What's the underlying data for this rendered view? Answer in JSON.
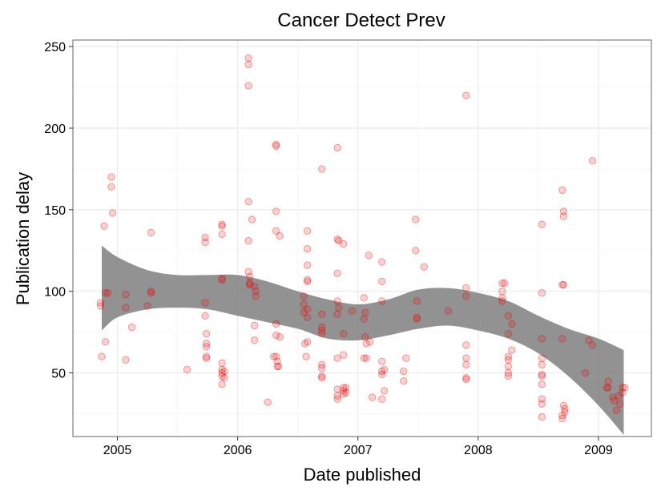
{
  "chart_data": {
    "type": "scatter",
    "title": "Cancer Detect Prev",
    "xlabel": "Date published",
    "ylabel": "Publication delay",
    "x_range": [
      2004.63,
      2009.44
    ],
    "ylim": [
      11,
      254
    ],
    "x_ticks": [
      2005,
      2006,
      2007,
      2008,
      2009
    ],
    "x_tick_labels": [
      "2005",
      "2006",
      "2007",
      "2008",
      "2009"
    ],
    "y_ticks": [
      50,
      100,
      150,
      200,
      250
    ],
    "y_tick_labels": [
      "50",
      "100",
      "150",
      "200",
      "250"
    ],
    "grid": true,
    "colors": {
      "points": "#ff0000",
      "point_stroke": "#d40000",
      "band": "#7f7f7f",
      "grid_major": "#ebebeb",
      "grid_minor": "#f5f5f5",
      "panel_border": "#7f7f7f"
    },
    "points": [
      [
        2004.86,
        91
      ],
      [
        2004.86,
        93
      ],
      [
        2004.87,
        60
      ],
      [
        2004.89,
        140
      ],
      [
        2004.9,
        69
      ],
      [
        2004.9,
        99
      ],
      [
        2004.92,
        99
      ],
      [
        2004.95,
        170
      ],
      [
        2004.95,
        164
      ],
      [
        2004.96,
        148
      ],
      [
        2005.07,
        98
      ],
      [
        2005.07,
        90
      ],
      [
        2005.07,
        58
      ],
      [
        2005.12,
        78
      ],
      [
        2005.25,
        91
      ],
      [
        2005.28,
        136
      ],
      [
        2005.28,
        100
      ],
      [
        2005.28,
        99
      ],
      [
        2005.58,
        52
      ],
      [
        2005.73,
        133
      ],
      [
        2005.73,
        130
      ],
      [
        2005.73,
        93
      ],
      [
        2005.73,
        85
      ],
      [
        2005.74,
        74
      ],
      [
        2005.74,
        68
      ],
      [
        2005.74,
        66
      ],
      [
        2005.74,
        60
      ],
      [
        2005.74,
        59
      ],
      [
        2005.87,
        141
      ],
      [
        2005.87,
        140
      ],
      [
        2005.87,
        135
      ],
      [
        2005.87,
        108
      ],
      [
        2005.87,
        107
      ],
      [
        2005.87,
        56
      ],
      [
        2005.87,
        52
      ],
      [
        2005.87,
        50
      ],
      [
        2005.87,
        48
      ],
      [
        2005.87,
        43
      ],
      [
        2005.89,
        51
      ],
      [
        2005.89,
        47
      ],
      [
        2006.09,
        243
      ],
      [
        2006.09,
        239
      ],
      [
        2006.09,
        226
      ],
      [
        2006.09,
        155
      ],
      [
        2006.09,
        131
      ],
      [
        2006.09,
        112
      ],
      [
        2006.1,
        109
      ],
      [
        2006.1,
        105
      ],
      [
        2006.1,
        104
      ],
      [
        2006.12,
        144
      ],
      [
        2006.14,
        103
      ],
      [
        2006.15,
        100
      ],
      [
        2006.15,
        97
      ],
      [
        2006.14,
        79
      ],
      [
        2006.14,
        70
      ],
      [
        2006.25,
        32
      ],
      [
        2006.32,
        190
      ],
      [
        2006.32,
        189
      ],
      [
        2006.32,
        149
      ],
      [
        2006.32,
        137
      ],
      [
        2006.32,
        80
      ],
      [
        2006.32,
        73
      ],
      [
        2006.32,
        60
      ],
      [
        2006.33,
        57
      ],
      [
        2006.33,
        54
      ],
      [
        2006.35,
        134
      ],
      [
        2006.35,
        72
      ],
      [
        2006.3,
        60
      ],
      [
        2006.34,
        54
      ],
      [
        2006.55,
        97
      ],
      [
        2006.55,
        92
      ],
      [
        2006.55,
        87
      ],
      [
        2006.56,
        68
      ],
      [
        2006.57,
        60
      ],
      [
        2006.58,
        137
      ],
      [
        2006.58,
        126
      ],
      [
        2006.58,
        116
      ],
      [
        2006.58,
        107
      ],
      [
        2006.58,
        106
      ],
      [
        2006.58,
        89
      ],
      [
        2006.58,
        84
      ],
      [
        2006.58,
        69
      ],
      [
        2006.7,
        175
      ],
      [
        2006.7,
        86
      ],
      [
        2006.7,
        78
      ],
      [
        2006.7,
        76
      ],
      [
        2006.7,
        74
      ],
      [
        2006.7,
        55
      ],
      [
        2006.7,
        53
      ],
      [
        2006.7,
        48
      ],
      [
        2006.7,
        47
      ],
      [
        2006.83,
        188
      ],
      [
        2006.83,
        132
      ],
      [
        2006.83,
        111
      ],
      [
        2006.83,
        94
      ],
      [
        2006.83,
        86
      ],
      [
        2006.83,
        59
      ],
      [
        2006.83,
        40
      ],
      [
        2006.83,
        36
      ],
      [
        2006.83,
        34
      ],
      [
        2006.84,
        131
      ],
      [
        2006.84,
        90
      ],
      [
        2006.88,
        129
      ],
      [
        2006.88,
        74
      ],
      [
        2006.88,
        61
      ],
      [
        2006.88,
        41
      ],
      [
        2006.88,
        39
      ],
      [
        2006.88,
        37
      ],
      [
        2006.9,
        41
      ],
      [
        2006.9,
        38
      ],
      [
        2006.95,
        88
      ],
      [
        2007.05,
        96
      ],
      [
        2007.05,
        83
      ],
      [
        2007.05,
        59
      ],
      [
        2007.06,
        87
      ],
      [
        2007.06,
        72
      ],
      [
        2007.07,
        68
      ],
      [
        2007.07,
        59
      ],
      [
        2007.09,
        122
      ],
      [
        2007.1,
        69
      ],
      [
        2007.12,
        35
      ],
      [
        2007.2,
        118
      ],
      [
        2007.2,
        106
      ],
      [
        2007.2,
        94
      ],
      [
        2007.2,
        57
      ],
      [
        2007.2,
        51
      ],
      [
        2007.2,
        49
      ],
      [
        2007.22,
        52
      ],
      [
        2007.22,
        39
      ],
      [
        2007.2,
        34
      ],
      [
        2007.38,
        51
      ],
      [
        2007.4,
        59
      ],
      [
        2007.38,
        45
      ],
      [
        2007.48,
        144
      ],
      [
        2007.48,
        125
      ],
      [
        2007.49,
        94
      ],
      [
        2007.49,
        84
      ],
      [
        2007.49,
        83
      ],
      [
        2007.55,
        115
      ],
      [
        2007.75,
        88
      ],
      [
        2007.9,
        220
      ],
      [
        2007.9,
        102
      ],
      [
        2007.9,
        97
      ],
      [
        2007.9,
        67
      ],
      [
        2007.9,
        59
      ],
      [
        2007.9,
        55
      ],
      [
        2007.9,
        47
      ],
      [
        2007.9,
        46
      ],
      [
        2008.2,
        105
      ],
      [
        2008.2,
        100
      ],
      [
        2008.2,
        96
      ],
      [
        2008.2,
        94
      ],
      [
        2008.22,
        105
      ],
      [
        2008.25,
        85
      ],
      [
        2008.25,
        74
      ],
      [
        2008.25,
        60
      ],
      [
        2008.25,
        58
      ],
      [
        2008.25,
        54
      ],
      [
        2008.25,
        50
      ],
      [
        2008.25,
        48
      ],
      [
        2008.28,
        80
      ],
      [
        2008.28,
        64
      ],
      [
        2008.53,
        141
      ],
      [
        2008.53,
        99
      ],
      [
        2008.53,
        71
      ],
      [
        2008.53,
        59
      ],
      [
        2008.53,
        55
      ],
      [
        2008.53,
        49
      ],
      [
        2008.53,
        48
      ],
      [
        2008.53,
        43
      ],
      [
        2008.53,
        34
      ],
      [
        2008.53,
        31
      ],
      [
        2008.53,
        23
      ],
      [
        2008.7,
        162
      ],
      [
        2008.71,
        149
      ],
      [
        2008.71,
        146
      ],
      [
        2008.7,
        104
      ],
      [
        2008.71,
        104
      ],
      [
        2008.7,
        71
      ],
      [
        2008.71,
        30
      ],
      [
        2008.72,
        28
      ],
      [
        2008.72,
        26
      ],
      [
        2008.7,
        24
      ],
      [
        2008.7,
        22
      ],
      [
        2008.89,
        50
      ],
      [
        2008.95,
        180
      ],
      [
        2008.92,
        70
      ],
      [
        2008.95,
        67
      ],
      [
        2009.08,
        45
      ],
      [
        2009.07,
        41
      ],
      [
        2009.08,
        41
      ],
      [
        2009.12,
        35
      ],
      [
        2009.13,
        33
      ],
      [
        2009.15,
        27
      ],
      [
        2009.17,
        36
      ],
      [
        2009.2,
        41
      ],
      [
        2009.22,
        41
      ],
      [
        2009.2,
        38
      ],
      [
        2009.18,
        31
      ]
    ],
    "smooth_band": {
      "x": [
        2004.87,
        2005.0,
        2005.25,
        2005.5,
        2005.75,
        2006.0,
        2006.25,
        2006.5,
        2006.75,
        2007.0,
        2007.25,
        2007.5,
        2007.75,
        2008.0,
        2008.25,
        2008.5,
        2008.75,
        2009.0,
        2009.21
      ],
      "upper": [
        128,
        121,
        113,
        110,
        110,
        110,
        106,
        100,
        95,
        92,
        95,
        101,
        102,
        99,
        94,
        85,
        77,
        71,
        64
      ],
      "lower": [
        76,
        84,
        89,
        90,
        89,
        85,
        81,
        77,
        71,
        70,
        73,
        77,
        79,
        76,
        71,
        62,
        48,
        30,
        12
      ]
    }
  }
}
